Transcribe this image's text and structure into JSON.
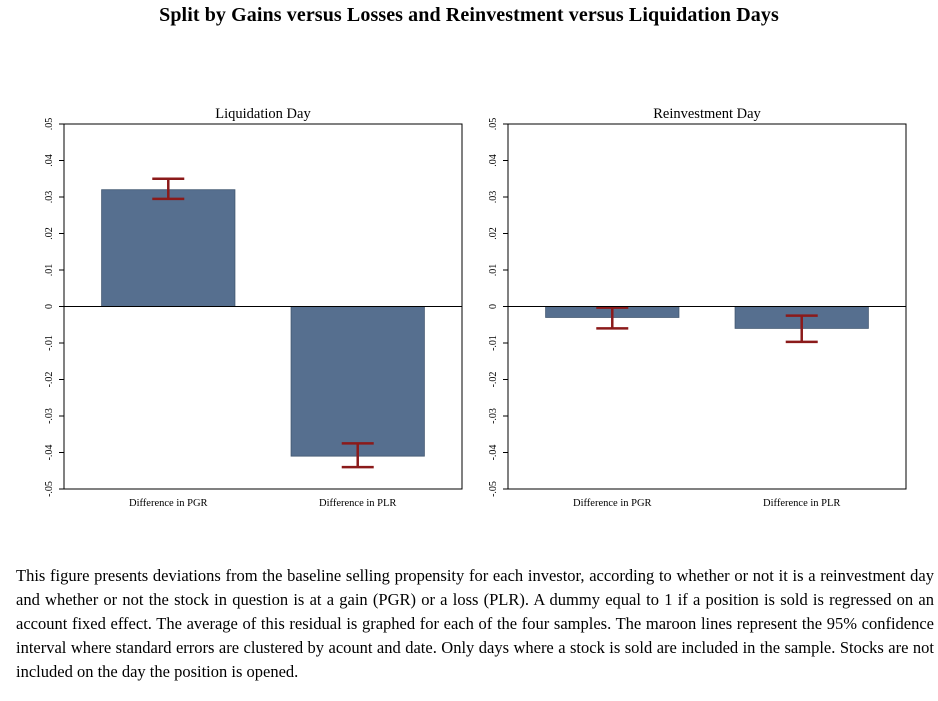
{
  "figure": {
    "title": "Split by Gains versus Losses and Reinvestment versus Liquidation Days",
    "caption": "This figure presents deviations from the baseline selling propensity for each investor, according to whether or not it is a reinvestment day and whether or not the stock in question is at a gain (PGR) or a loss (PLR). A dummy equal to 1 if a position is sold is regressed on an account fixed effect. The average of this residual is graphed for each of the four samples. The maroon lines represent the 95% confidence interval where standard errors are clustered by acount and date. Only days where a stock is sold are included in the sample. Stocks are not included on the day the position is opened."
  },
  "colors": {
    "bar": "#566f8f",
    "bar_edge": "#3f556f",
    "error_bar": "#8b1a1a",
    "axis": "#000000"
  },
  "chart_data": [
    {
      "type": "bar",
      "title": "Liquidation Day",
      "categories": [
        "Difference in PGR",
        "Difference in PLR"
      ],
      "values": [
        0.032,
        -0.041
      ],
      "ci_low": [
        0.0295,
        -0.044
      ],
      "ci_high": [
        0.035,
        -0.0375
      ],
      "ylim": [
        -0.05,
        0.05
      ],
      "yticks": [
        -0.05,
        -0.04,
        -0.03,
        -0.02,
        -0.01,
        0,
        0.01,
        0.02,
        0.03,
        0.04,
        0.05
      ],
      "ytick_labels": [
        "-.05",
        "-.04",
        "-.03",
        "-.02",
        "-.01",
        "0",
        ".01",
        ".02",
        ".03",
        ".04",
        ".05"
      ],
      "grid": false,
      "xlabel": "",
      "ylabel": ""
    },
    {
      "type": "bar",
      "title": "Reinvestment Day",
      "categories": [
        "Difference in PGR",
        "Difference in PLR"
      ],
      "values": [
        -0.003,
        -0.006
      ],
      "ci_low": [
        -0.006,
        -0.0097
      ],
      "ci_high": [
        -0.0003,
        -0.0025
      ],
      "ylim": [
        -0.05,
        0.05
      ],
      "yticks": [
        -0.05,
        -0.04,
        -0.03,
        -0.02,
        -0.01,
        0,
        0.01,
        0.02,
        0.03,
        0.04,
        0.05
      ],
      "ytick_labels": [
        "-.05",
        "-.04",
        "-.03",
        "-.02",
        "-.01",
        "0",
        ".01",
        ".02",
        ".03",
        ".04",
        ".05"
      ],
      "grid": false,
      "xlabel": "",
      "ylabel": ""
    }
  ]
}
